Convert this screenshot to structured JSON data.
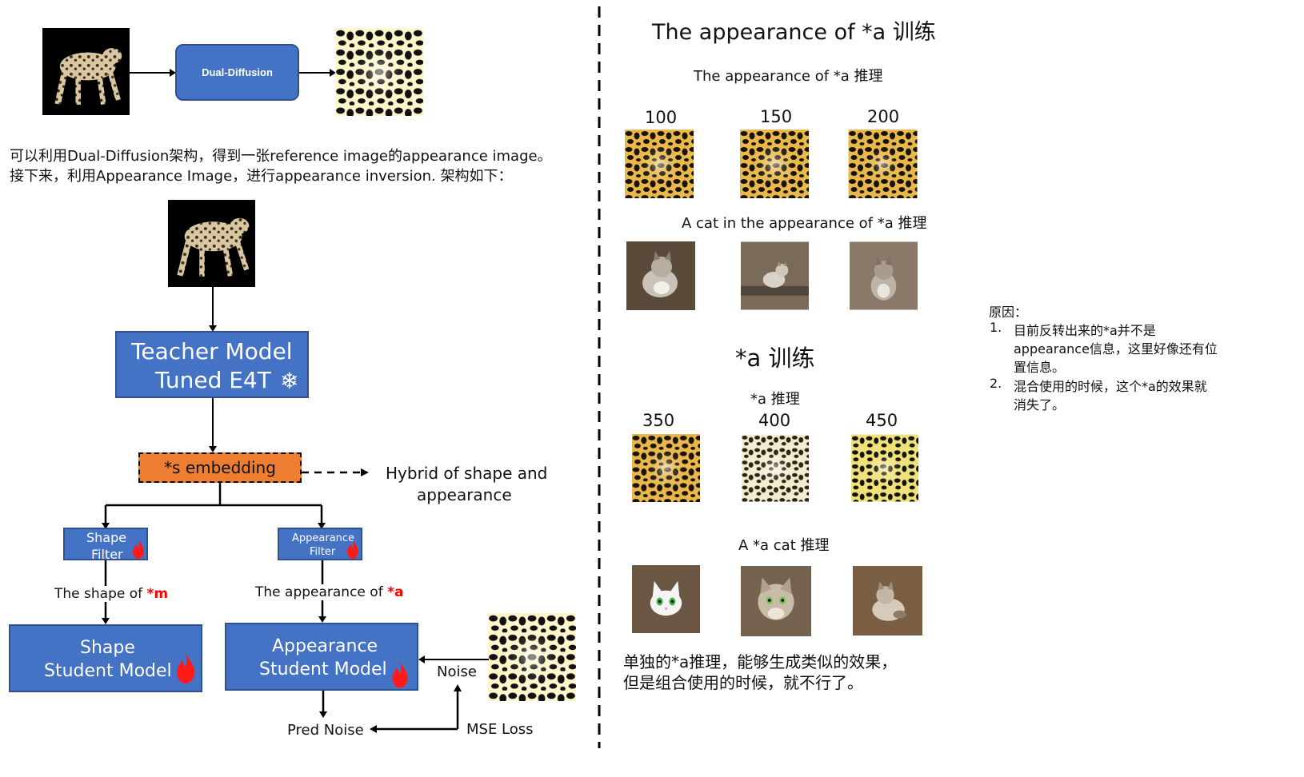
{
  "left": {
    "dual_diffusion_label": "Dual-Diffusion",
    "desc_line1": "可以利用Dual-Diffusion架构，得到一张reference image的appearance image。",
    "desc_line2": "接下来，利用Appearance Image，进行appearance inversion. 架构如下：",
    "teacher_line1": "Teacher Model",
    "teacher_line2": "Tuned E4T",
    "snowflake": "❄",
    "embedding_label": "*s embedding",
    "hybrid_line1": "Hybrid of shape and",
    "hybrid_line2": "appearance",
    "shape_filter_line1": "Shape",
    "shape_filter_line2": "Filter",
    "appearance_filter_line1": "Appearance",
    "appearance_filter_line2": "Filter",
    "shape_of_text": "The shape of ",
    "shape_token": "*m",
    "appearance_of_text": "The appearance of ",
    "appearance_token": "*a",
    "shape_student_line1": "Shape",
    "shape_student_line2": "Student Model",
    "appearance_student_line1": "Appearance",
    "appearance_student_line2": "Student Model",
    "noise_label": "Noise",
    "pred_noise_label": "Pred Noise",
    "mse_loss_label": "MSE Loss"
  },
  "right": {
    "title1": "The appearance of *a 训练",
    "sub1": "The appearance of *a 推理",
    "steps1": [
      "100",
      "150",
      "200"
    ],
    "sub2": "A cat in the appearance of *a 推理",
    "title2": "*a 训练",
    "sub3": "*a 推理",
    "steps2": [
      "350",
      "400",
      "450"
    ],
    "sub4": "A *a cat 推理",
    "conclusion_line1": "单独的*a推理，能够生成类似的效果，",
    "conclusion_line2": "但是组合使用的时候，就不行了。"
  },
  "notes": {
    "heading": "原因：",
    "item1_num": "1.",
    "item1_line1": "目前反转出来的*a并不是",
    "item1_line2": "appearance信息，这里好像还有位",
    "item1_line3": "置信息。",
    "item2_num": "2.",
    "item2_line1": "混合使用的时候，这个*a的效果就",
    "item2_line2": "消失了。"
  },
  "colors": {
    "box_blue": "#4472c4",
    "box_border": "#2f528f",
    "embedding_orange": "#ed7d31",
    "token_red": "#ff0000"
  }
}
